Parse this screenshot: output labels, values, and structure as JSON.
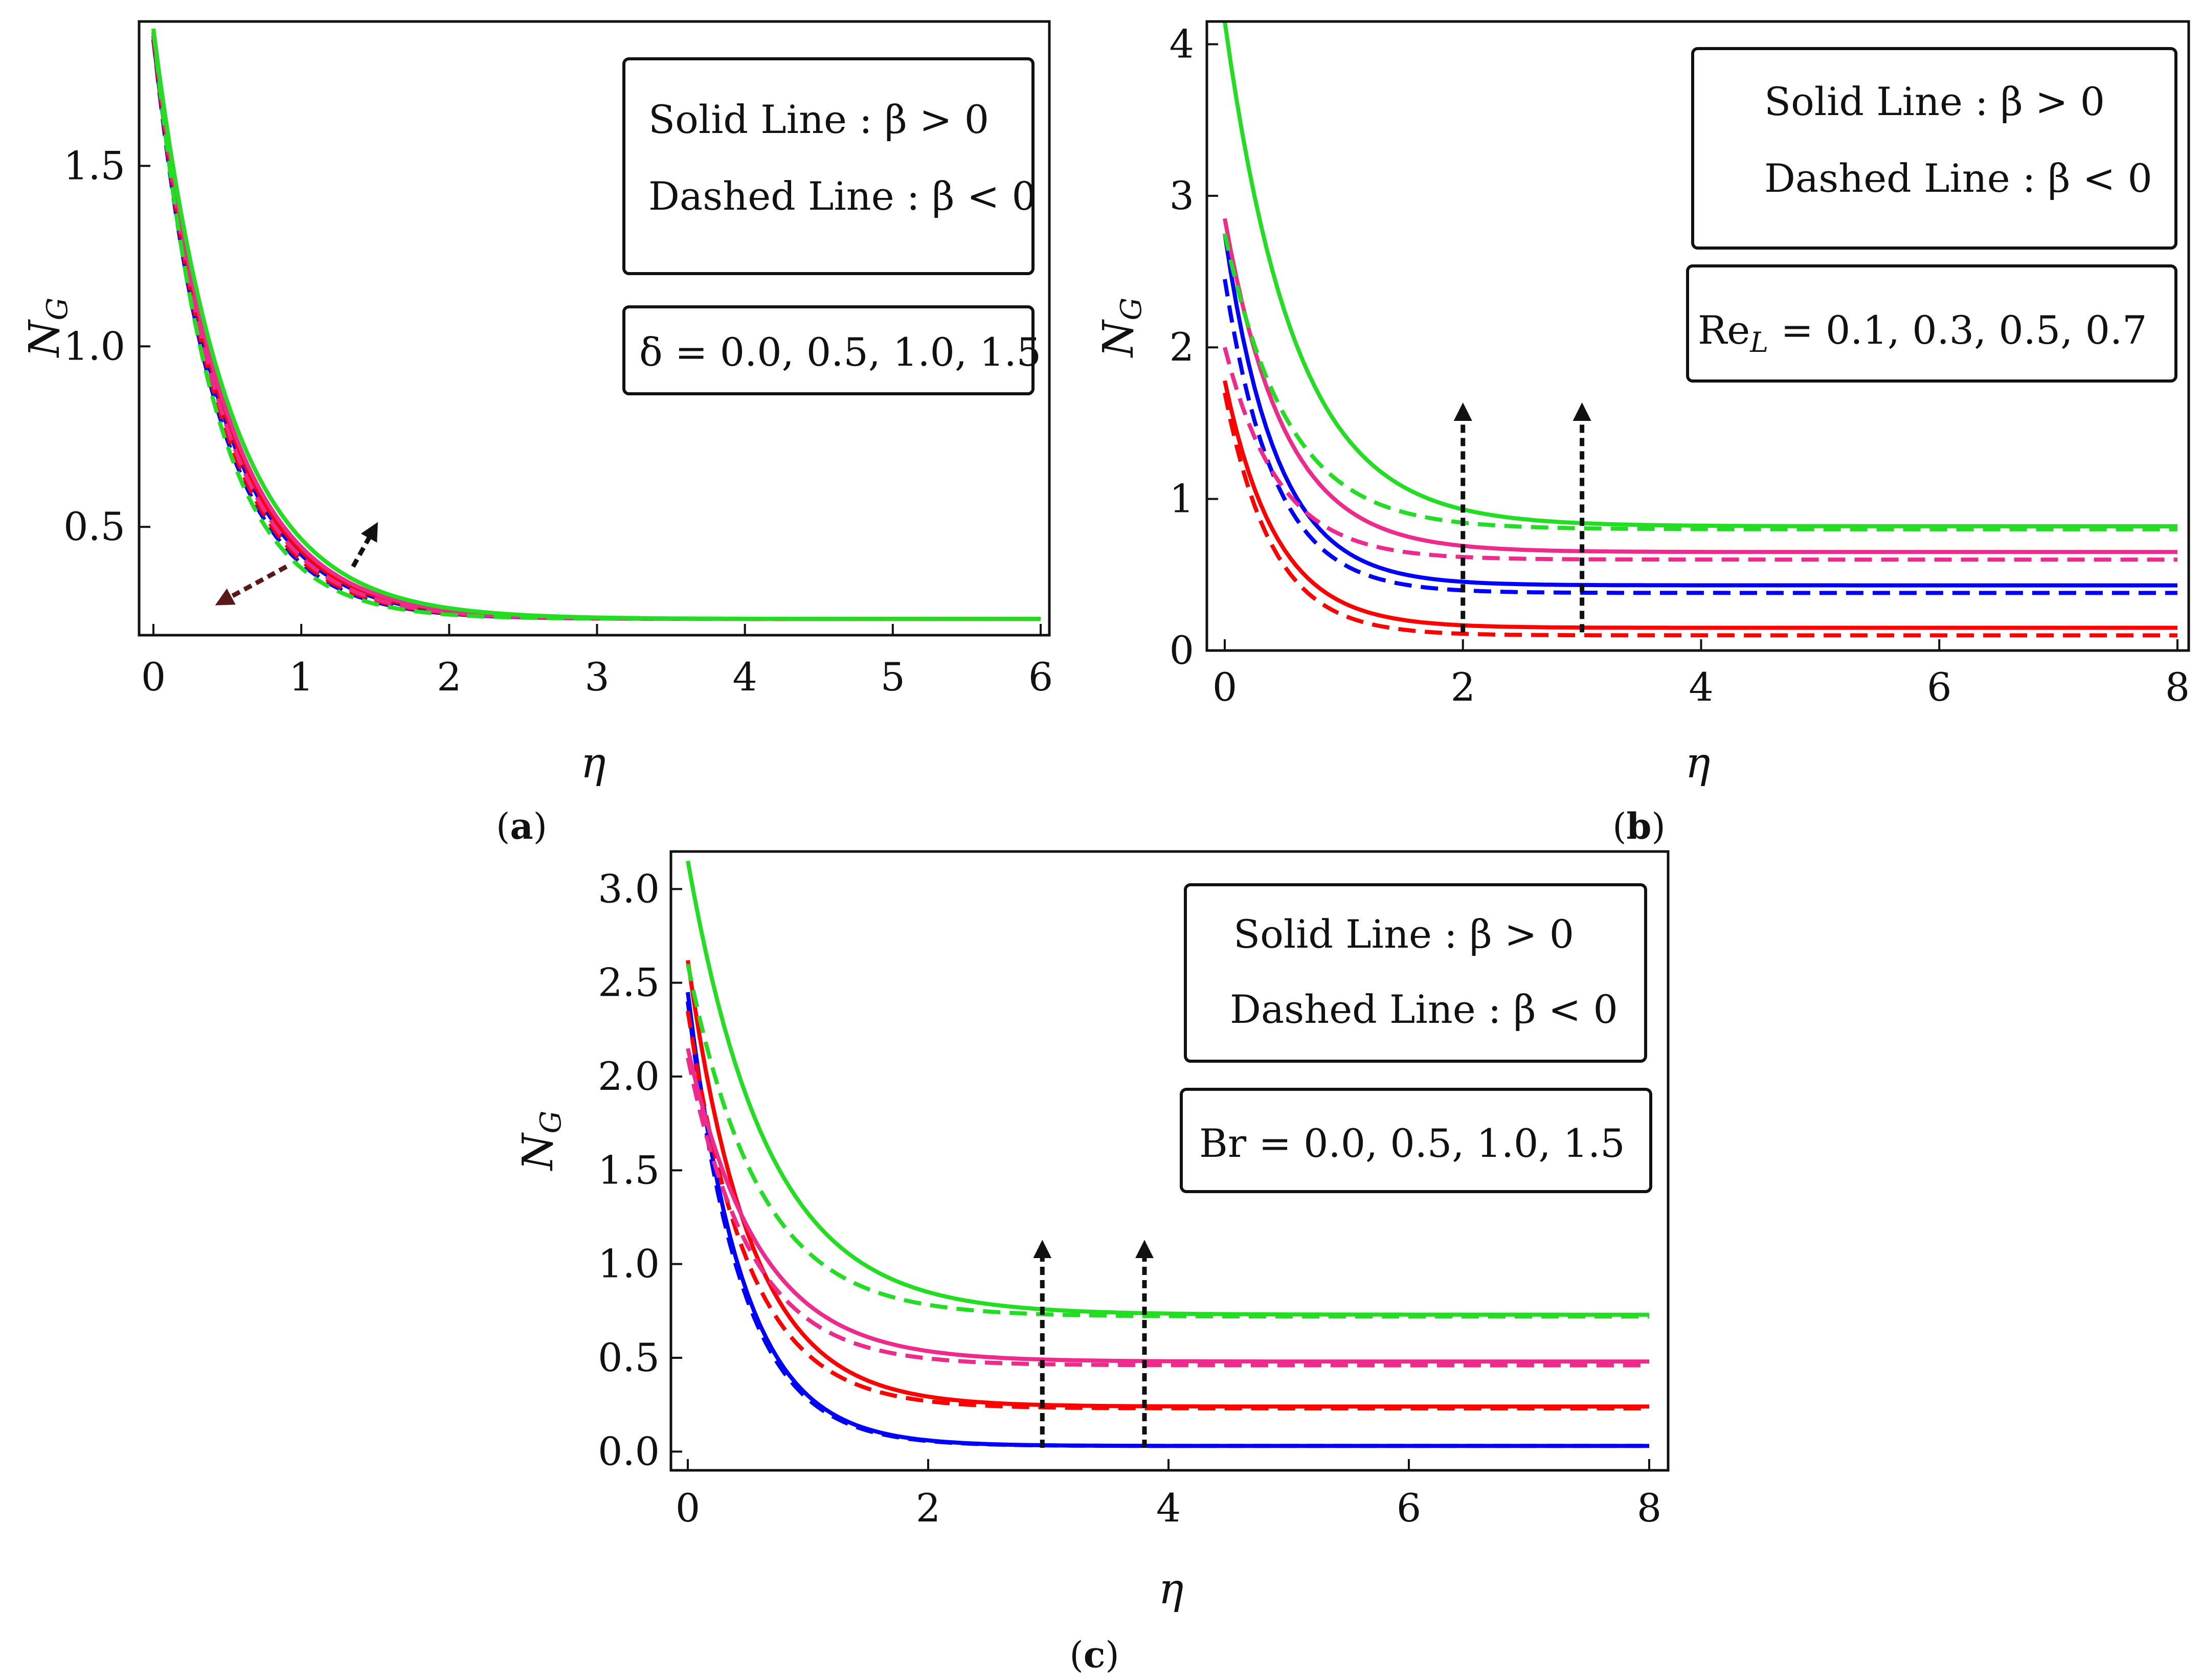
{
  "chart_data": [
    {
      "type": "line",
      "panel": "a",
      "panel_label": "(a)",
      "panel_letter": "a",
      "xlabel": "η",
      "ylabel": "N_G",
      "ylabel_main": "N",
      "ylabel_sub": "G",
      "xlim": [
        0,
        6
      ],
      "ylim": [
        0.2,
        1.9
      ],
      "xticks": [
        0,
        1,
        2,
        3,
        4,
        5,
        6
      ],
      "xtick_labels": [
        "0",
        "1",
        "2",
        "3",
        "4",
        "5",
        "6"
      ],
      "yticks": [
        0.5,
        1.0,
        1.5
      ],
      "ytick_labels": [
        "0.5",
        "1.0",
        "1.5"
      ],
      "legend": {
        "solid": "Solid Line : β > 0",
        "dashed": "Dashed Line : β < 0",
        "param": "δ = 0.0, 0.5, 1.0, 1.5"
      },
      "series": [
        {
          "name": "δ = 0.0",
          "color": "#0000ff",
          "style": "solid",
          "y0": 1.85,
          "inf": 0.245,
          "k": 2.2
        },
        {
          "name": "δ = 0.0",
          "color": "#0000ff",
          "style": "dashed",
          "y0": 1.85,
          "inf": 0.245,
          "k": 2.35
        },
        {
          "name": "δ = 0.5",
          "color": "#ff0000",
          "style": "solid",
          "y0": 1.86,
          "inf": 0.245,
          "k": 2.15
        },
        {
          "name": "δ = 0.5",
          "color": "#ff0000",
          "style": "dashed",
          "y0": 1.86,
          "inf": 0.245,
          "k": 2.3
        },
        {
          "name": "δ = 1.0",
          "color": "#ee2a8c",
          "style": "solid",
          "y0": 1.87,
          "inf": 0.245,
          "k": 2.1
        },
        {
          "name": "δ = 1.0",
          "color": "#ee2a8c",
          "style": "dashed",
          "y0": 1.87,
          "inf": 0.245,
          "k": 2.25
        },
        {
          "name": "δ = 1.5",
          "color": "#22dd22",
          "style": "solid",
          "y0": 1.88,
          "inf": 0.245,
          "k": 2.0
        },
        {
          "name": "δ = 1.5",
          "color": "#22dd22",
          "style": "dashed",
          "y0": 1.88,
          "inf": 0.245,
          "k": 2.45
        }
      ],
      "arrows": [
        {
          "from": [
            0.9,
            0.39
          ],
          "to": [
            0.45,
            0.29
          ],
          "color": "#5a1818"
        },
        {
          "from": [
            1.35,
            0.39
          ],
          "to": [
            1.5,
            0.5
          ],
          "color": "#111111"
        }
      ]
    },
    {
      "type": "line",
      "panel": "b",
      "panel_label": "(b)",
      "panel_letter": "b",
      "xlabel": "η",
      "ylabel": "N_G",
      "ylabel_main": "N",
      "ylabel_sub": "G",
      "xlim": [
        0,
        8
      ],
      "ylim": [
        0,
        4.15
      ],
      "xticks": [
        0,
        2,
        4,
        6,
        8
      ],
      "xtick_labels": [
        "0",
        "2",
        "4",
        "6",
        "8"
      ],
      "yticks": [
        0,
        1,
        2,
        3,
        4
      ],
      "ytick_labels": [
        "0",
        "1",
        "2",
        "3",
        "4"
      ],
      "legend": {
        "solid": "Solid Line : β > 0",
        "dashed": "Dashed Line : β < 0",
        "param_main": "Re",
        "param_sub": "L",
        "param_rest": " = 0.1, 0.3, 0.5, 0.7"
      },
      "series": [
        {
          "name": "Re_L = 0.1",
          "color": "#ff0000",
          "style": "solid",
          "y0": 1.78,
          "inf": 0.15,
          "k": 2.3
        },
        {
          "name": "Re_L = 0.1",
          "color": "#ff0000",
          "style": "dashed",
          "y0": 1.7,
          "inf": 0.1,
          "k": 2.5
        },
        {
          "name": "Re_L = 0.3",
          "color": "#0000ff",
          "style": "solid",
          "y0": 2.75,
          "inf": 0.43,
          "k": 2.3
        },
        {
          "name": "Re_L = 0.3",
          "color": "#0000ff",
          "style": "dashed",
          "y0": 2.45,
          "inf": 0.38,
          "k": 2.4
        },
        {
          "name": "Re_L = 0.5",
          "color": "#ee2a8c",
          "style": "solid",
          "y0": 2.85,
          "inf": 0.65,
          "k": 2.0
        },
        {
          "name": "Re_L = 0.5",
          "color": "#ee2a8c",
          "style": "dashed",
          "y0": 2.0,
          "inf": 0.6,
          "k": 2.2
        },
        {
          "name": "Re_L = 0.7",
          "color": "#22dd22",
          "style": "solid",
          "y0": 4.15,
          "inf": 0.82,
          "k": 1.7
        },
        {
          "name": "Re_L = 0.7",
          "color": "#22dd22",
          "style": "dashed",
          "y0": 2.75,
          "inf": 0.8,
          "k": 1.9
        }
      ],
      "arrows": [
        {
          "from": [
            2.0,
            0.12
          ],
          "to": [
            2.0,
            1.6
          ],
          "color": "#111111"
        },
        {
          "from": [
            3.0,
            0.12
          ],
          "to": [
            3.0,
            1.6
          ],
          "color": "#111111"
        }
      ]
    },
    {
      "type": "line",
      "panel": "c",
      "panel_label": "(c)",
      "panel_letter": "c",
      "xlabel": "η",
      "ylabel": "N_G",
      "ylabel_main": "N",
      "ylabel_sub": "G",
      "xlim": [
        0,
        8
      ],
      "ylim": [
        -0.1,
        3.2
      ],
      "xticks": [
        0,
        2,
        4,
        6,
        8
      ],
      "xtick_labels": [
        "0",
        "2",
        "4",
        "6",
        "8"
      ],
      "yticks": [
        0.0,
        0.5,
        1.0,
        1.5,
        2.0,
        2.5,
        3.0
      ],
      "ytick_labels": [
        "0.0",
        "0.5",
        "1.0",
        "1.5",
        "2.0",
        "2.5",
        "3.0"
      ],
      "legend": {
        "solid": "Solid Line : β > 0",
        "dashed": "Dashed Line : β < 0",
        "param": "Br = 0.0, 0.5, 1.0, 1.5"
      },
      "series": [
        {
          "name": "Br = 0.0",
          "color": "#0000ff",
          "style": "solid",
          "y0": 2.45,
          "inf": 0.03,
          "k": 2.2
        },
        {
          "name": "Br = 0.0",
          "color": "#0000ff",
          "style": "dashed",
          "y0": 2.4,
          "inf": 0.03,
          "k": 2.25
        },
        {
          "name": "Br = 0.5",
          "color": "#ff0000",
          "style": "solid",
          "y0": 2.62,
          "inf": 0.24,
          "k": 1.9
        },
        {
          "name": "Br = 0.5",
          "color": "#ff0000",
          "style": "dashed",
          "y0": 2.35,
          "inf": 0.23,
          "k": 2.0
        },
        {
          "name": "Br = 1.0",
          "color": "#ee2a8c",
          "style": "solid",
          "y0": 2.15,
          "inf": 0.48,
          "k": 1.7
        },
        {
          "name": "Br = 1.0",
          "color": "#ee2a8c",
          "style": "dashed",
          "y0": 2.1,
          "inf": 0.46,
          "k": 1.9
        },
        {
          "name": "Br = 1.5",
          "color": "#22dd22",
          "style": "solid",
          "y0": 3.15,
          "inf": 0.73,
          "k": 1.5
        },
        {
          "name": "Br = 1.5",
          "color": "#22dd22",
          "style": "dashed",
          "y0": 2.6,
          "inf": 0.72,
          "k": 1.7
        }
      ],
      "arrows": [
        {
          "from": [
            2.95,
            0.02
          ],
          "to": [
            2.95,
            1.1
          ],
          "color": "#111111"
        },
        {
          "from": [
            3.8,
            0.02
          ],
          "to": [
            3.8,
            1.1
          ],
          "color": "#111111"
        }
      ]
    }
  ]
}
